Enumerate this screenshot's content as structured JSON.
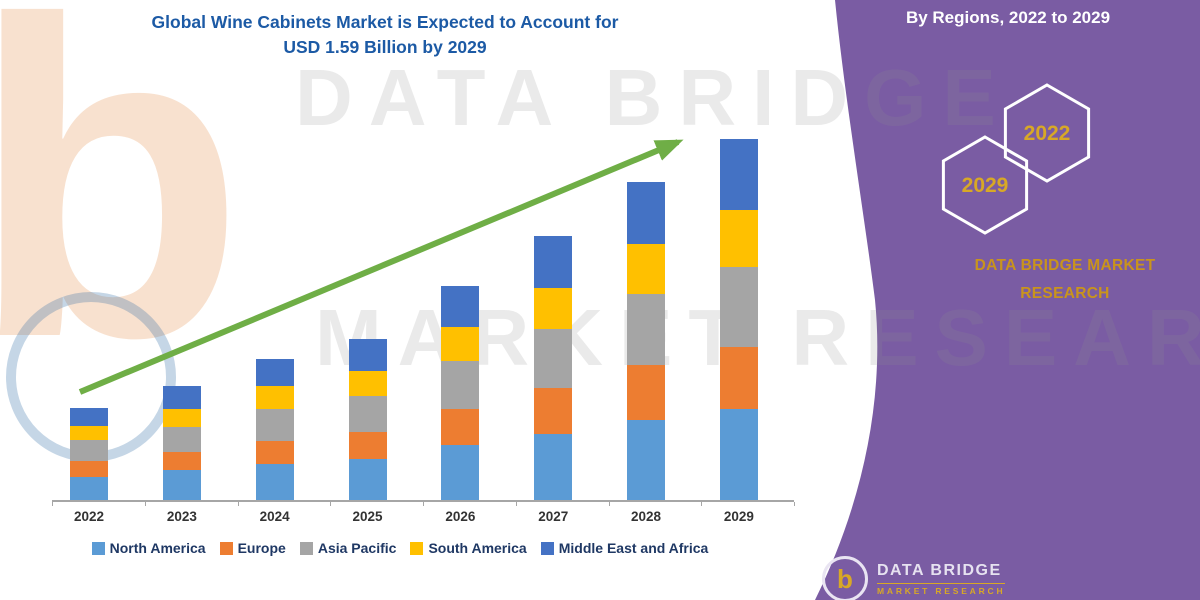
{
  "title": {
    "line1": "Global Wine Cabinets Market is Expected to Account for",
    "line2": "USD 1.59 Billion by 2029"
  },
  "side_panel": {
    "heading": "By Regions, 2022 to 2029",
    "hexagons": [
      {
        "label": "2029"
      },
      {
        "label": "2022"
      }
    ],
    "brand_line1": "DATA BRIDGE MARKET",
    "brand_line2": "RESEARCH"
  },
  "watermark": {
    "line1": "DATA BRIDGE",
    "line2": "MARKET RESEARCH",
    "logo_letter": "b"
  },
  "footer_logo": {
    "letter": "b",
    "name": "DATA BRIDGE",
    "sub": "MARKET RESEARCH"
  },
  "colors": {
    "accent_purple": "#7A5CA3",
    "title_blue": "#1C5AA5",
    "gold": "#C9941C",
    "arrow_green": "#6FAE46",
    "legend_text": "#1F3864"
  },
  "chart_data": {
    "type": "bar",
    "stacked": true,
    "title": "Global Wine Cabinets Market is Expected to Account for USD 1.59 Billion by 2029",
    "categories": [
      "2022",
      "2023",
      "2024",
      "2025",
      "2026",
      "2027",
      "2028",
      "2029"
    ],
    "series": [
      {
        "name": "North America",
        "color": "#5B9BD5",
        "values": [
          0.1,
          0.13,
          0.16,
          0.18,
          0.24,
          0.29,
          0.35,
          0.4
        ]
      },
      {
        "name": "Europe",
        "color": "#ED7D31",
        "values": [
          0.07,
          0.08,
          0.1,
          0.12,
          0.16,
          0.2,
          0.24,
          0.27
        ]
      },
      {
        "name": "Asia Pacific",
        "color": "#A5A5A5",
        "values": [
          0.09,
          0.11,
          0.14,
          0.16,
          0.21,
          0.26,
          0.31,
          0.35
        ]
      },
      {
        "name": "South America",
        "color": "#FFC000",
        "values": [
          0.06,
          0.08,
          0.1,
          0.11,
          0.15,
          0.18,
          0.22,
          0.25
        ]
      },
      {
        "name": "Middle East and Africa",
        "color": "#4472C4",
        "values": [
          0.08,
          0.1,
          0.12,
          0.14,
          0.18,
          0.23,
          0.27,
          0.31
        ]
      }
    ],
    "xlabel": "",
    "ylabel": "",
    "units": "USD Billion (estimated; y-axis not labeled in figure)",
    "ylim": [
      0,
      1.7
    ],
    "grid": false,
    "legend_position": "bottom",
    "annotations": [
      "upward green trend arrow from first bar to last bar"
    ]
  }
}
